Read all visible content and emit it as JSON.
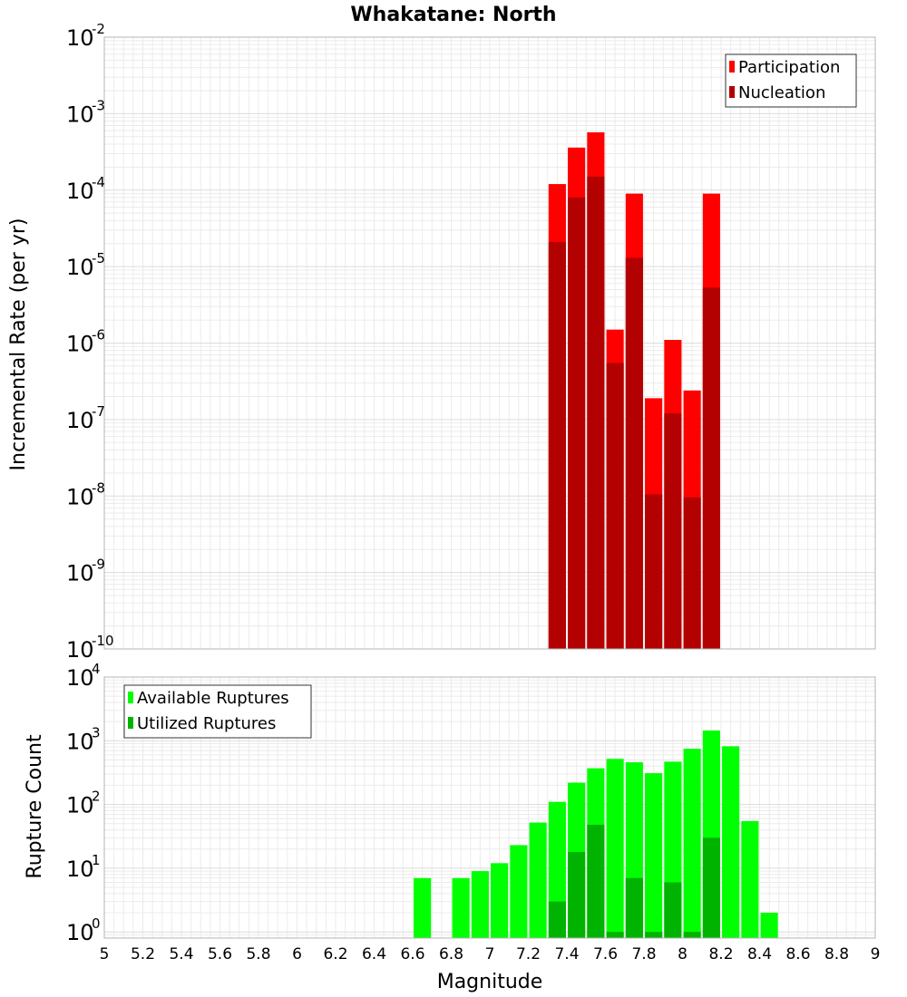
{
  "chart_data": [
    {
      "type": "bar",
      "title": "Whakatane: North",
      "xlabel": "",
      "ylabel": "Incremental Rate (per yr)",
      "yscale": "log",
      "xlim": [
        5,
        9
      ],
      "ylim": [
        1e-10,
        0.01
      ],
      "grid": true,
      "legend_position": "top-right",
      "x": [
        7.35,
        7.45,
        7.55,
        7.65,
        7.75,
        7.85,
        7.95,
        8.05,
        8.15
      ],
      "series": [
        {
          "name": "Participation",
          "color": "#ff0000",
          "values": [
            0.00012,
            0.00036,
            0.00057,
            1.5e-06,
            9e-05,
            1.9e-07,
            1.1e-06,
            2.4e-07,
            9e-05
          ]
        },
        {
          "name": "Nucleation",
          "color": "#b30000",
          "values": [
            2.1e-05,
            8e-05,
            0.00015,
            5.5e-07,
            1.3e-05,
            1.05e-08,
            1.2e-07,
            9.6e-09,
            5.3e-06
          ]
        }
      ],
      "ytick_bases": [
        "10",
        "10",
        "10",
        "10",
        "10",
        "10",
        "10",
        "10",
        "10"
      ],
      "ytick_exponents": [
        "-10",
        "-9",
        "-8",
        "-7",
        "-6",
        "-5",
        "-4",
        "-3",
        "-2"
      ]
    },
    {
      "type": "bar",
      "title": "",
      "xlabel": "Magnitude",
      "ylabel": "Rupture Count",
      "yscale": "log",
      "xlim": [
        5,
        9
      ],
      "ylim": [
        0.8,
        10000.0
      ],
      "grid": true,
      "legend_position": "top-left",
      "x": [
        6.65,
        6.85,
        6.95,
        7.05,
        7.15,
        7.25,
        7.35,
        7.45,
        7.55,
        7.65,
        7.75,
        7.85,
        7.95,
        8.05,
        8.15,
        8.25,
        8.35,
        8.45
      ],
      "series": [
        {
          "name": "Available Ruptures",
          "color": "#00ff00",
          "values": [
            7,
            7,
            9,
            12,
            23,
            52,
            110,
            220,
            370,
            520,
            460,
            310,
            470,
            750,
            1450,
            820,
            55,
            2
          ]
        },
        {
          "name": "Utilized Ruptures",
          "color": "#00b300",
          "values": [
            null,
            null,
            null,
            null,
            null,
            null,
            3,
            18,
            48,
            1,
            7,
            1,
            6,
            1,
            30,
            null,
            null,
            null
          ]
        }
      ],
      "ytick_bases": [
        "10",
        "10",
        "10",
        "10",
        "10"
      ],
      "ytick_exponents": [
        "0",
        "1",
        "2",
        "3",
        "4"
      ],
      "xticks": [
        "5",
        "5.2",
        "5.4",
        "5.6",
        "5.8",
        "6",
        "6.2",
        "6.4",
        "6.6",
        "6.8",
        "7",
        "7.2",
        "7.4",
        "7.6",
        "7.8",
        "8",
        "8.2",
        "8.4",
        "8.6",
        "8.8",
        "9"
      ]
    }
  ],
  "figure": {
    "title": "Whakatane: North",
    "xlabel": "Magnitude",
    "ylabel_top": "Incremental Rate (per yr)",
    "ylabel_bottom": "Rupture Count"
  }
}
